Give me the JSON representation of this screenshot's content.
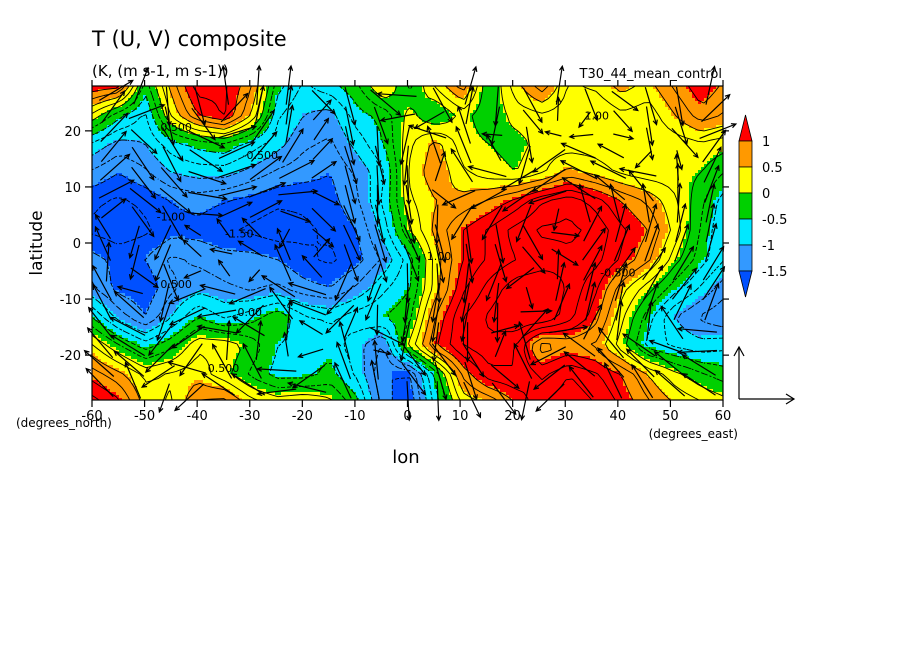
{
  "chart_data": {
    "type": "heatmap",
    "title": "T (U, V) composite",
    "subtitle": "(K, (m s-1, m s-1))",
    "run_label": "T30_44_mean_control",
    "xlabel": "lon",
    "ylabel": "latitude",
    "x_unit_label": "(degrees_east)",
    "y_unit_label": "(degrees_north)",
    "xlim": [
      -60,
      60
    ],
    "ylim": [
      -28,
      28
    ],
    "x_ticks": [
      -60,
      -50,
      -40,
      -30,
      -20,
      -10,
      0,
      10,
      20,
      30,
      40,
      50,
      60
    ],
    "y_ticks": [
      20,
      10,
      0,
      -10,
      -20
    ],
    "x_tick_labels": [
      "-60",
      "-50",
      "-40",
      "-30",
      "-20",
      "-10",
      "0",
      "10",
      "20",
      "30",
      "40",
      "50",
      "60"
    ],
    "y_tick_labels": [
      "20",
      "10",
      "0",
      "-10",
      "-20"
    ],
    "colorbar": {
      "labels": [
        "1",
        "0.5",
        "0",
        "-0.5",
        "-1",
        "-1.5"
      ],
      "colors": [
        "#ff0000",
        "#ff9900",
        "#ffff00",
        "#00d000",
        "#00e8ff",
        "#3399ff",
        "#0050ff"
      ]
    },
    "contour_labels": [
      "0.500",
      "-0.500",
      "-1.00",
      "-1.50",
      "0.500",
      "0.00",
      "1.00",
      "-0.500",
      "0.500",
      "1.00"
    ],
    "field_rows": [
      [
        1.2,
        1.1,
        -0.4,
        0.6,
        1.4,
        1.3,
        0.8,
        -0.4,
        -0.8,
        -0.6,
        -0.3,
        0.3,
        -0.3,
        0.3,
        0.9,
        -0.3,
        0.4,
        0.9,
        0.2,
        0.3,
        0.6,
        0.4,
        0.8,
        1.2,
        0.9
      ],
      [
        0.2,
        -0.4,
        -0.8,
        0.3,
        1.0,
        1.3,
        0.5,
        -0.7,
        -1.0,
        -1.1,
        -0.6,
        -0.4,
        0.1,
        -0.3,
        0.1,
        -0.2,
        0.1,
        0.2,
        0.1,
        0.0,
        0.2,
        0.1,
        0.5,
        0.9,
        0.7
      ],
      [
        -0.8,
        -1.1,
        -1.0,
        -0.6,
        -0.4,
        -0.3,
        -0.6,
        -0.9,
        -1.2,
        -1.3,
        -0.9,
        -0.5,
        0.2,
        0.6,
        0.1,
        0.0,
        -0.1,
        0.1,
        0.1,
        0.1,
        0.0,
        0.0,
        0.1,
        0.2,
        0.1
      ],
      [
        -1.3,
        -1.5,
        -1.3,
        -1.0,
        -0.9,
        -0.9,
        -1.1,
        -1.3,
        -1.4,
        -1.5,
        -1.2,
        -0.8,
        0.3,
        0.7,
        0.3,
        0.1,
        0.0,
        0.2,
        0.6,
        0.4,
        0.2,
        0.1,
        0.1,
        0.0,
        -0.3
      ],
      [
        -1.7,
        -1.8,
        -1.7,
        -1.5,
        -1.4,
        -1.5,
        -1.6,
        -1.7,
        -1.7,
        -1.6,
        -1.3,
        -0.7,
        0.2,
        0.5,
        0.6,
        0.8,
        1.1,
        1.5,
        1.7,
        1.4,
        1.0,
        0.7,
        0.3,
        -0.2,
        -0.7
      ],
      [
        -1.8,
        -1.9,
        -1.8,
        -1.6,
        -1.6,
        -1.7,
        -1.8,
        -1.9,
        -1.8,
        -1.7,
        -1.5,
        -0.9,
        0.0,
        0.6,
        1.0,
        1.3,
        1.6,
        1.8,
        1.8,
        1.7,
        1.3,
        1.0,
        0.4,
        -0.3,
        -0.8
      ],
      [
        -1.4,
        -1.6,
        -1.5,
        -1.2,
        -1.3,
        -1.4,
        -1.4,
        -1.5,
        -1.7,
        -1.8,
        -1.6,
        -1.2,
        -0.6,
        0.4,
        1.0,
        1.3,
        1.5,
        1.6,
        1.7,
        1.6,
        1.2,
        0.8,
        0.1,
        -0.4,
        -0.8
      ],
      [
        -1.2,
        -1.6,
        -1.7,
        -1.3,
        -1.1,
        -1.2,
        -1.3,
        -1.2,
        -1.4,
        -1.5,
        -1.2,
        -0.8,
        -0.5,
        0.4,
        1.2,
        1.6,
        1.9,
        2.0,
        1.7,
        1.3,
        0.6,
        0.1,
        -0.4,
        -0.8,
        -1.2
      ],
      [
        -0.5,
        -1.1,
        -1.5,
        -1.0,
        -0.5,
        -0.8,
        -0.6,
        -0.3,
        -0.7,
        -0.8,
        -0.6,
        -0.5,
        -0.3,
        0.8,
        1.5,
        1.8,
        2.0,
        2.0,
        1.6,
        1.1,
        0.3,
        -0.4,
        -1.0,
        -1.3,
        -1.5
      ],
      [
        0.3,
        -0.2,
        -0.6,
        -0.3,
        0.2,
        0.2,
        -0.1,
        -0.5,
        -0.6,
        -0.6,
        -0.9,
        -1.3,
        0.1,
        1.0,
        1.5,
        1.7,
        1.5,
        0.6,
        0.8,
        0.7,
        0.1,
        -0.6,
        -0.8,
        -0.9,
        -0.8
      ],
      [
        0.9,
        0.6,
        0.2,
        0.3,
        0.4,
        0.1,
        -0.3,
        -0.6,
        -0.6,
        -0.4,
        -0.8,
        -1.5,
        -1.5,
        -0.4,
        0.8,
        1.4,
        1.5,
        1.2,
        1.5,
        1.3,
        1.0,
        0.5,
        0.1,
        -0.2,
        -0.4
      ],
      [
        1.4,
        1.1,
        0.4,
        0.2,
        0.8,
        0.9,
        0.4,
        0.2,
        0.3,
        0.1,
        -0.4,
        -1.4,
        -1.7,
        -0.6,
        0.3,
        0.5,
        1.0,
        1.5,
        1.7,
        1.5,
        1.2,
        0.8,
        0.5,
        0.3,
        0.1
      ]
    ]
  }
}
